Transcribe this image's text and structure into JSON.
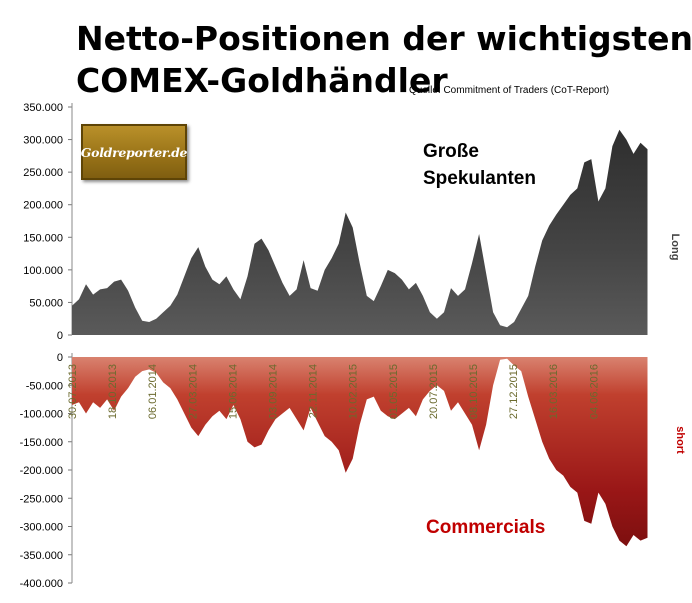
{
  "header": {
    "title_line1": "Netto-Positionen der wichtigsten",
    "title_line2": "COMEX-Goldhändler",
    "source": "Quelle: Commitment of Traders (CoT-Report)"
  },
  "logo": {
    "text": "Goldreporter.de"
  },
  "labels": {
    "speculators": "Große\nSpekulanten",
    "commercials": "Commercials"
  },
  "colors": {
    "long_area": "#3d3d3d",
    "short_area": "#a01c1c",
    "short_label": "#c00000",
    "date_labels": "#6b6a2e"
  },
  "chart_data": [
    {
      "type": "area",
      "name": "Große Spekulanten",
      "ylabel": "Long",
      "ylim": [
        0,
        350000
      ],
      "yticks": [
        "0",
        "50.000",
        "100.000",
        "150.000",
        "200.000",
        "250.000",
        "300.000",
        "350.000"
      ],
      "x_range": [
        "2013-07-30",
        "2016-09-27"
      ],
      "points": [
        [
          "2013-07-30",
          45000
        ],
        [
          "2013-08-13",
          55000
        ],
        [
          "2013-08-27",
          78000
        ],
        [
          "2013-09-10",
          62000
        ],
        [
          "2013-09-24",
          70000
        ],
        [
          "2013-10-08",
          72000
        ],
        [
          "2013-10-22",
          82000
        ],
        [
          "2013-11-05",
          85000
        ],
        [
          "2013-11-19",
          68000
        ],
        [
          "2013-12-03",
          42000
        ],
        [
          "2013-12-17",
          22000
        ],
        [
          "2013-12-31",
          20000
        ],
        [
          "2014-01-14",
          25000
        ],
        [
          "2014-01-28",
          35000
        ],
        [
          "2014-02-11",
          45000
        ],
        [
          "2014-02-25",
          62000
        ],
        [
          "2014-03-11",
          90000
        ],
        [
          "2014-03-25",
          118000
        ],
        [
          "2014-04-08",
          135000
        ],
        [
          "2014-04-22",
          105000
        ],
        [
          "2014-05-06",
          85000
        ],
        [
          "2014-05-20",
          78000
        ],
        [
          "2014-06-03",
          90000
        ],
        [
          "2014-06-17",
          70000
        ],
        [
          "2014-07-01",
          55000
        ],
        [
          "2014-07-15",
          90000
        ],
        [
          "2014-07-29",
          140000
        ],
        [
          "2014-08-12",
          148000
        ],
        [
          "2014-08-26",
          130000
        ],
        [
          "2014-09-09",
          105000
        ],
        [
          "2014-09-23",
          80000
        ],
        [
          "2014-10-07",
          60000
        ],
        [
          "2014-10-21",
          70000
        ],
        [
          "2014-11-04",
          115000
        ],
        [
          "2014-11-18",
          72000
        ],
        [
          "2014-12-02",
          68000
        ],
        [
          "2014-12-16",
          100000
        ],
        [
          "2014-12-30",
          118000
        ],
        [
          "2015-01-13",
          140000
        ],
        [
          "2015-01-27",
          188000
        ],
        [
          "2015-02-10",
          165000
        ],
        [
          "2015-02-24",
          110000
        ],
        [
          "2015-03-10",
          60000
        ],
        [
          "2015-03-24",
          52000
        ],
        [
          "2015-04-07",
          75000
        ],
        [
          "2015-04-21",
          100000
        ],
        [
          "2015-05-05",
          95000
        ],
        [
          "2015-05-19",
          85000
        ],
        [
          "2015-06-02",
          70000
        ],
        [
          "2015-06-16",
          80000
        ],
        [
          "2015-06-30",
          60000
        ],
        [
          "2015-07-14",
          35000
        ],
        [
          "2015-07-28",
          25000
        ],
        [
          "2015-08-11",
          35000
        ],
        [
          "2015-08-25",
          72000
        ],
        [
          "2015-09-08",
          60000
        ],
        [
          "2015-09-22",
          70000
        ],
        [
          "2015-10-06",
          110000
        ],
        [
          "2015-10-20",
          155000
        ],
        [
          "2015-11-03",
          95000
        ],
        [
          "2015-11-17",
          35000
        ],
        [
          "2015-12-01",
          15000
        ],
        [
          "2015-12-15",
          12000
        ],
        [
          "2015-12-29",
          20000
        ],
        [
          "2016-01-12",
          40000
        ],
        [
          "2016-01-26",
          60000
        ],
        [
          "2016-02-09",
          105000
        ],
        [
          "2016-02-23",
          145000
        ],
        [
          "2016-03-08",
          168000
        ],
        [
          "2016-03-22",
          185000
        ],
        [
          "2016-04-05",
          200000
        ],
        [
          "2016-04-19",
          215000
        ],
        [
          "2016-05-03",
          225000
        ],
        [
          "2016-05-17",
          265000
        ],
        [
          "2016-05-31",
          270000
        ],
        [
          "2016-06-14",
          205000
        ],
        [
          "2016-06-28",
          225000
        ],
        [
          "2016-07-12",
          290000
        ],
        [
          "2016-07-26",
          315000
        ],
        [
          "2016-08-09",
          300000
        ],
        [
          "2016-08-23",
          278000
        ],
        [
          "2016-09-06",
          295000
        ],
        [
          "2016-09-20",
          285000
        ]
      ]
    },
    {
      "type": "area",
      "name": "Commercials",
      "ylabel": "short",
      "ylim": [
        -400000,
        0
      ],
      "yticks": [
        "-400.000",
        "-350.000",
        "-300.000",
        "-250.000",
        "-200.000",
        "-150.000",
        "-100.000",
        "-50.000",
        "0"
      ],
      "x_range": [
        "2013-07-30",
        "2016-09-27"
      ],
      "xticks": [
        "30.07.2013",
        "18.10.2013",
        "06.01.2014",
        "27.03.2014",
        "15.06.2014",
        "03.09.2014",
        "22.11.2014",
        "10.02.2015",
        "01.05.2015",
        "20.07.2015",
        "08.10.2015",
        "27.12.2015",
        "16.03.2016",
        "04.06.2016"
      ],
      "points": [
        [
          "2013-07-30",
          -85000
        ],
        [
          "2013-08-13",
          -80000
        ],
        [
          "2013-08-27",
          -100000
        ],
        [
          "2013-09-10",
          -80000
        ],
        [
          "2013-09-24",
          -90000
        ],
        [
          "2013-10-08",
          -75000
        ],
        [
          "2013-10-22",
          -95000
        ],
        [
          "2013-11-05",
          -70000
        ],
        [
          "2013-11-19",
          -55000
        ],
        [
          "2013-12-03",
          -35000
        ],
        [
          "2013-12-17",
          -25000
        ],
        [
          "2013-12-31",
          -22000
        ],
        [
          "2014-01-14",
          -28000
        ],
        [
          "2014-01-28",
          -45000
        ],
        [
          "2014-02-11",
          -55000
        ],
        [
          "2014-02-25",
          -75000
        ],
        [
          "2014-03-11",
          -100000
        ],
        [
          "2014-03-25",
          -125000
        ],
        [
          "2014-04-08",
          -140000
        ],
        [
          "2014-04-22",
          -120000
        ],
        [
          "2014-05-06",
          -105000
        ],
        [
          "2014-05-20",
          -95000
        ],
        [
          "2014-06-03",
          -110000
        ],
        [
          "2014-06-17",
          -85000
        ],
        [
          "2014-07-01",
          -110000
        ],
        [
          "2014-07-15",
          -150000
        ],
        [
          "2014-07-29",
          -160000
        ],
        [
          "2014-08-12",
          -155000
        ],
        [
          "2014-08-26",
          -130000
        ],
        [
          "2014-09-09",
          -110000
        ],
        [
          "2014-09-23",
          -100000
        ],
        [
          "2014-10-07",
          -90000
        ],
        [
          "2014-10-21",
          -110000
        ],
        [
          "2014-11-04",
          -130000
        ],
        [
          "2014-11-18",
          -90000
        ],
        [
          "2014-12-02",
          -115000
        ],
        [
          "2014-12-16",
          -140000
        ],
        [
          "2014-12-30",
          -150000
        ],
        [
          "2015-01-13",
          -165000
        ],
        [
          "2015-01-27",
          -205000
        ],
        [
          "2015-02-10",
          -180000
        ],
        [
          "2015-02-24",
          -120000
        ],
        [
          "2015-03-10",
          -75000
        ],
        [
          "2015-03-24",
          -70000
        ],
        [
          "2015-04-07",
          -95000
        ],
        [
          "2015-04-21",
          -105000
        ],
        [
          "2015-05-05",
          -110000
        ],
        [
          "2015-05-19",
          -100000
        ],
        [
          "2015-06-02",
          -90000
        ],
        [
          "2015-06-16",
          -105000
        ],
        [
          "2015-06-30",
          -75000
        ],
        [
          "2015-07-14",
          -60000
        ],
        [
          "2015-07-28",
          -50000
        ],
        [
          "2015-08-11",
          -60000
        ],
        [
          "2015-08-25",
          -95000
        ],
        [
          "2015-09-08",
          -80000
        ],
        [
          "2015-09-22",
          -100000
        ],
        [
          "2015-10-06",
          -120000
        ],
        [
          "2015-10-20",
          -165000
        ],
        [
          "2015-11-03",
          -120000
        ],
        [
          "2015-11-17",
          -50000
        ],
        [
          "2015-12-01",
          -5000
        ],
        [
          "2015-12-15",
          -3000
        ],
        [
          "2015-12-29",
          -15000
        ],
        [
          "2016-01-12",
          -25000
        ],
        [
          "2016-01-26",
          -70000
        ],
        [
          "2016-02-09",
          -110000
        ],
        [
          "2016-02-23",
          -150000
        ],
        [
          "2016-03-08",
          -180000
        ],
        [
          "2016-03-22",
          -200000
        ],
        [
          "2016-04-05",
          -210000
        ],
        [
          "2016-04-19",
          -230000
        ],
        [
          "2016-05-03",
          -240000
        ],
        [
          "2016-05-17",
          -290000
        ],
        [
          "2016-05-31",
          -295000
        ],
        [
          "2016-06-14",
          -240000
        ],
        [
          "2016-06-28",
          -260000
        ],
        [
          "2016-07-12",
          -300000
        ],
        [
          "2016-07-26",
          -325000
        ],
        [
          "2016-08-09",
          -335000
        ],
        [
          "2016-08-23",
          -315000
        ],
        [
          "2016-09-06",
          -325000
        ],
        [
          "2016-09-20",
          -320000
        ]
      ]
    }
  ]
}
